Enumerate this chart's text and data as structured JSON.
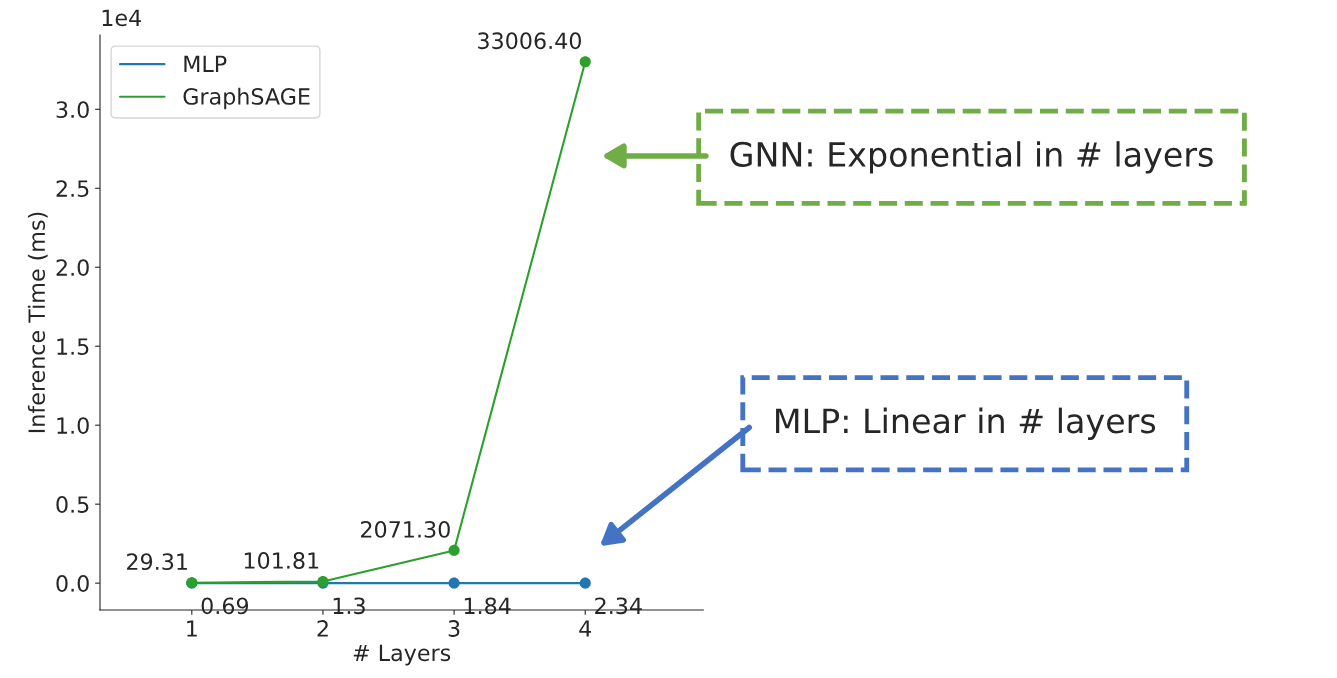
{
  "chart_data": {
    "type": "line",
    "xlabel": "# Layers",
    "ylabel": "Inference Time (ms)",
    "x": [
      1,
      2,
      3,
      4
    ],
    "series": [
      {
        "name": "MLP",
        "color": "#1f77b4",
        "values": [
          6.9e-05,
          0.00013,
          0.000184,
          0.000234
        ]
      },
      {
        "name": "GraphSAGE",
        "color": "#2ca02c",
        "values": [
          0.002931,
          0.010181,
          0.20713,
          3.30064
        ]
      }
    ],
    "xlim": [
      0.3,
      4.9
    ],
    "xticks": [
      1,
      2,
      3,
      4
    ],
    "ylim": [
      -0.17,
      3.47
    ],
    "yticks": [
      {
        "value": 0,
        "label": "0.0"
      },
      0.5,
      {
        "value": 1,
        "label": "1.0"
      },
      1.5,
      {
        "value": 2,
        "label": "2.0"
      },
      2.5,
      {
        "value": 3,
        "label": "3.0"
      }
    ],
    "marker": "circle",
    "legend": "top left",
    "grid": false,
    "annotations": [
      "1e4",
      "GNN: Exponential in # layers",
      "MLP: Linear in # layers",
      {
        "text": "0.69",
        "x": 1,
        "y": 6.9e-05
      },
      {
        "text": "1.3",
        "x": 2,
        "y": 0.00013
      },
      {
        "text": "1.84",
        "x": 3,
        "y": 0.000184
      },
      {
        "text": "2.34",
        "x": 4,
        "y": 0.000234
      },
      {
        "text": "29.31",
        "x": 1,
        "y": 0.002931
      },
      {
        "text": "101.81",
        "x": 2,
        "y": 0.010181
      },
      {
        "text": "2071.30",
        "x": 3,
        "y": 0.20713
      },
      {
        "text": "33006.40",
        "x": 4,
        "y": 3.30064
      }
    ]
  }
}
